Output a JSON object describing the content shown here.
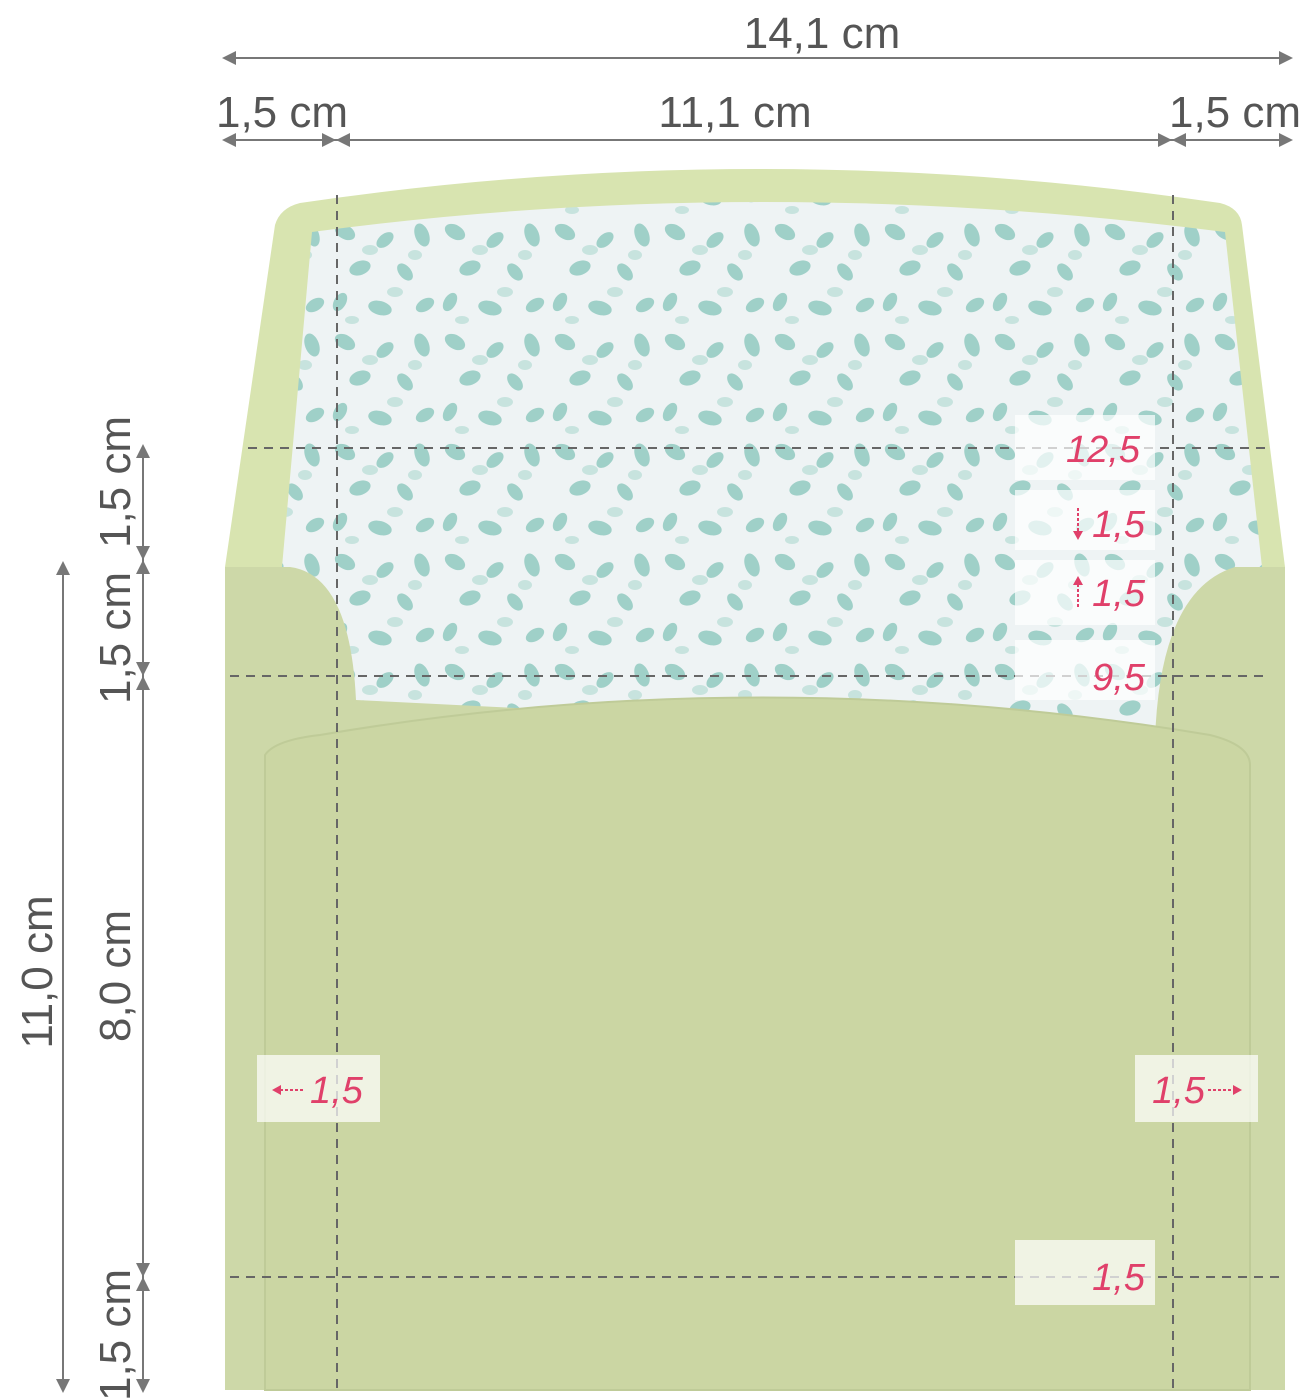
{
  "top_dimensions": {
    "total": "14,1 cm",
    "left": "1,5 cm",
    "middle": "11,1 cm",
    "right": "1,5 cm"
  },
  "side_dimensions": {
    "flap_top": "1,5 cm",
    "flap_bottom": "1,5 cm",
    "body": "8,0 cm",
    "bottom": "1,5 cm",
    "total": "11,0 cm"
  },
  "markers": {
    "flap_line": "12,5",
    "flap_down": "1,5",
    "flap_up": "1,5",
    "fold_line": "9,5",
    "left_margin": "1,5",
    "right_margin": "1,5",
    "bottom_margin": "1,5"
  }
}
